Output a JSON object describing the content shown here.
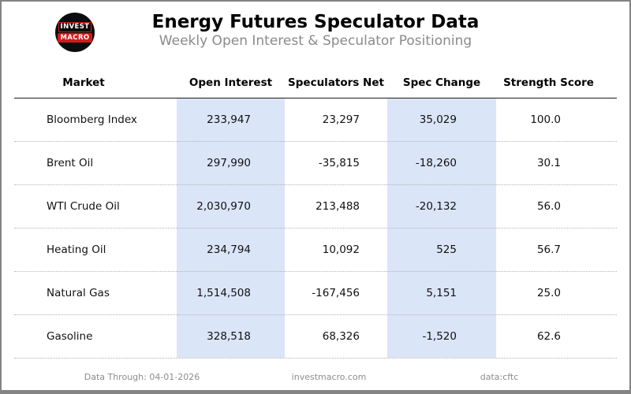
{
  "header": {
    "title": "Energy Futures Speculator Data",
    "subtitle": "Weekly Open Interest & Speculator Positioning",
    "logo": {
      "line1": "INVEST",
      "line2": "MACRO"
    }
  },
  "table": {
    "columns": [
      "Market",
      "Open Interest",
      "Speculators Net",
      "Spec Change",
      "Strength Score"
    ],
    "rows": [
      {
        "market": "Bloomberg Index",
        "open_interest": "233,947",
        "spec_net": "23,297",
        "spec_change": "35,029",
        "strength": "100.0"
      },
      {
        "market": "Brent Oil",
        "open_interest": "297,990",
        "spec_net": "-35,815",
        "spec_change": "-18,260",
        "strength": "30.1"
      },
      {
        "market": "WTI Crude Oil",
        "open_interest": "2,030,970",
        "spec_net": "213,488",
        "spec_change": "-20,132",
        "strength": "56.0"
      },
      {
        "market": "Heating Oil",
        "open_interest": "234,794",
        "spec_net": "10,092",
        "spec_change": "525",
        "strength": "56.7"
      },
      {
        "market": "Natural Gas",
        "open_interest": "1,514,508",
        "spec_net": "-167,456",
        "spec_change": "5,151",
        "strength": "25.0"
      },
      {
        "market": "Gasoline",
        "open_interest": "328,518",
        "spec_net": "68,326",
        "spec_change": "-1,520",
        "strength": "62.6"
      }
    ]
  },
  "footer": {
    "data_through": "Data Through: 04-01-2026",
    "site": "investmacro.com",
    "source": "data:cftc"
  },
  "colors": {
    "highlight_column": "#dbe5f8",
    "accent_red": "#d11a1a",
    "border_gray": "#848484"
  },
  "chart_data": {
    "type": "table",
    "title": "Energy Futures Speculator Data",
    "subtitle": "Weekly Open Interest & Speculator Positioning",
    "columns": [
      "Market",
      "Open Interest",
      "Speculators Net",
      "Spec Change",
      "Strength Score"
    ],
    "rows": [
      [
        "Bloomberg Index",
        233947,
        23297,
        35029,
        100.0
      ],
      [
        "Brent Oil",
        297990,
        -35815,
        -18260,
        30.1
      ],
      [
        "WTI Crude Oil",
        2030970,
        213488,
        -20132,
        56.0
      ],
      [
        "Heating Oil",
        234794,
        10092,
        525,
        56.7
      ],
      [
        "Natural Gas",
        1514508,
        -167456,
        5151,
        25.0
      ],
      [
        "Gasoline",
        328518,
        68326,
        -1520,
        62.6
      ]
    ],
    "layout_hints": {
      "highlighted_columns": [
        "Open Interest",
        "Spec Change"
      ],
      "grid": "dotted-row-separators"
    }
  }
}
